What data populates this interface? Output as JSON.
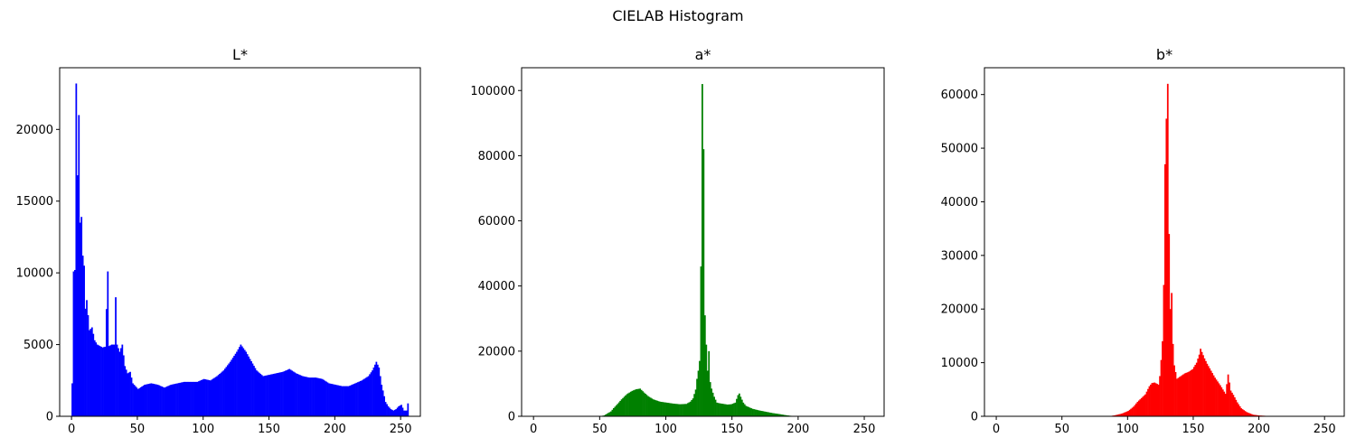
{
  "figure": {
    "suptitle": "CIELAB Histogram"
  },
  "chart_data": [
    {
      "type": "bar",
      "title": "L*",
      "xlabel": "",
      "ylabel": "",
      "color": "#0000ff",
      "xlim": [
        -9,
        265
      ],
      "ylim": [
        0,
        24300
      ],
      "xticks": [
        0,
        50,
        100,
        150,
        200,
        250
      ],
      "yticks": [
        0,
        5000,
        10000,
        15000,
        20000
      ],
      "grid": false,
      "x": "integer bins 0-255",
      "key_points": [
        [
          0,
          2300
        ],
        [
          1,
          10100
        ],
        [
          2,
          10200
        ],
        [
          3,
          23200
        ],
        [
          4,
          16800
        ],
        [
          5,
          21000
        ],
        [
          6,
          13500
        ],
        [
          7,
          13900
        ],
        [
          8,
          11200
        ],
        [
          9,
          10500
        ],
        [
          10,
          7500
        ],
        [
          11,
          8100
        ],
        [
          13,
          6000
        ],
        [
          15,
          6200
        ],
        [
          17,
          5300
        ],
        [
          19,
          5000
        ],
        [
          21,
          4900
        ],
        [
          23,
          4800
        ],
        [
          25,
          4850
        ],
        [
          27,
          10100
        ],
        [
          28,
          4900
        ],
        [
          30,
          5000
        ],
        [
          32,
          5000
        ],
        [
          33,
          8300
        ],
        [
          34,
          5000
        ],
        [
          36,
          4500
        ],
        [
          38,
          5000
        ],
        [
          40,
          3500
        ],
        [
          42,
          3000
        ],
        [
          44,
          3100
        ],
        [
          46,
          2300
        ],
        [
          48,
          2100
        ],
        [
          50,
          1900
        ],
        [
          55,
          2200
        ],
        [
          60,
          2300
        ],
        [
          65,
          2200
        ],
        [
          70,
          2000
        ],
        [
          75,
          2200
        ],
        [
          80,
          2300
        ],
        [
          85,
          2400
        ],
        [
          90,
          2400
        ],
        [
          95,
          2400
        ],
        [
          100,
          2600
        ],
        [
          105,
          2500
        ],
        [
          110,
          2800
        ],
        [
          115,
          3200
        ],
        [
          120,
          3800
        ],
        [
          125,
          4500
        ],
        [
          128,
          5000
        ],
        [
          132,
          4500
        ],
        [
          135,
          4000
        ],
        [
          140,
          3200
        ],
        [
          145,
          2800
        ],
        [
          150,
          2900
        ],
        [
          155,
          3000
        ],
        [
          160,
          3100
        ],
        [
          165,
          3300
        ],
        [
          170,
          3000
        ],
        [
          175,
          2800
        ],
        [
          180,
          2700
        ],
        [
          185,
          2700
        ],
        [
          190,
          2600
        ],
        [
          195,
          2300
        ],
        [
          200,
          2200
        ],
        [
          205,
          2100
        ],
        [
          210,
          2100
        ],
        [
          215,
          2300
        ],
        [
          220,
          2500
        ],
        [
          225,
          2800
        ],
        [
          228,
          3200
        ],
        [
          231,
          3800
        ],
        [
          233,
          3400
        ],
        [
          235,
          2200
        ],
        [
          238,
          1000
        ],
        [
          240,
          700
        ],
        [
          242,
          500
        ],
        [
          244,
          400
        ],
        [
          246,
          500
        ],
        [
          248,
          700
        ],
        [
          250,
          800
        ],
        [
          252,
          400
        ],
        [
          254,
          400
        ],
        [
          255,
          900
        ]
      ]
    },
    {
      "type": "bar",
      "title": "a*",
      "xlabel": "",
      "ylabel": "",
      "color": "#008000",
      "xlim": [
        -9,
        265
      ],
      "ylim": [
        0,
        107000
      ],
      "xticks": [
        0,
        50,
        100,
        150,
        200,
        250
      ],
      "yticks": [
        0,
        20000,
        40000,
        60000,
        80000,
        100000
      ],
      "grid": false,
      "x": "integer bins 0-255",
      "key_points": [
        [
          0,
          0
        ],
        [
          50,
          0
        ],
        [
          53,
          300
        ],
        [
          55,
          800
        ],
        [
          58,
          1500
        ],
        [
          60,
          2500
        ],
        [
          63,
          3800
        ],
        [
          66,
          5200
        ],
        [
          70,
          6800
        ],
        [
          74,
          7800
        ],
        [
          77,
          8300
        ],
        [
          80,
          8500
        ],
        [
          83,
          7300
        ],
        [
          86,
          6200
        ],
        [
          90,
          5200
        ],
        [
          95,
          4500
        ],
        [
          100,
          4200
        ],
        [
          105,
          3900
        ],
        [
          110,
          3700
        ],
        [
          115,
          3800
        ],
        [
          118,
          4500
        ],
        [
          120,
          5500
        ],
        [
          122,
          8200
        ],
        [
          123,
          11500
        ],
        [
          124,
          14000
        ],
        [
          125,
          17000
        ],
        [
          126,
          46000
        ],
        [
          127,
          102000
        ],
        [
          128,
          82000
        ],
        [
          129,
          31000
        ],
        [
          130,
          22000
        ],
        [
          131,
          14000
        ],
        [
          132,
          20000
        ],
        [
          133,
          10500
        ],
        [
          134,
          8500
        ],
        [
          136,
          6000
        ],
        [
          138,
          4200
        ],
        [
          140,
          4000
        ],
        [
          143,
          3800
        ],
        [
          146,
          3600
        ],
        [
          149,
          3700
        ],
        [
          152,
          4200
        ],
        [
          154,
          6500
        ],
        [
          155,
          7000
        ],
        [
          156,
          6000
        ],
        [
          158,
          4200
        ],
        [
          160,
          3200
        ],
        [
          165,
          2300
        ],
        [
          170,
          1800
        ],
        [
          175,
          1400
        ],
        [
          180,
          1000
        ],
        [
          185,
          700
        ],
        [
          190,
          350
        ],
        [
          195,
          100
        ],
        [
          200,
          0
        ],
        [
          255,
          0
        ]
      ]
    },
    {
      "type": "bar",
      "title": "b*",
      "xlabel": "",
      "ylabel": "",
      "color": "#ff0000",
      "xlim": [
        -9,
        265
      ],
      "ylim": [
        0,
        65000
      ],
      "xticks": [
        0,
        50,
        100,
        150,
        200,
        250
      ],
      "yticks": [
        0,
        10000,
        20000,
        30000,
        40000,
        50000,
        60000
      ],
      "grid": false,
      "x": "integer bins 0-255",
      "key_points": [
        [
          0,
          0
        ],
        [
          85,
          0
        ],
        [
          90,
          200
        ],
        [
          95,
          500
        ],
        [
          100,
          1000
        ],
        [
          104,
          1800
        ],
        [
          107,
          2700
        ],
        [
          110,
          3400
        ],
        [
          113,
          4100
        ],
        [
          116,
          5600
        ],
        [
          118,
          6200
        ],
        [
          120,
          6300
        ],
        [
          123,
          5900
        ],
        [
          124,
          7500
        ],
        [
          125,
          10500
        ],
        [
          126,
          14000
        ],
        [
          127,
          24500
        ],
        [
          128,
          47000
        ],
        [
          129,
          55500
        ],
        [
          130,
          62000
        ],
        [
          131,
          34000
        ],
        [
          132,
          20000
        ],
        [
          133,
          23000
        ],
        [
          134,
          13500
        ],
        [
          135,
          9500
        ],
        [
          137,
          7000
        ],
        [
          140,
          7500
        ],
        [
          143,
          8000
        ],
        [
          146,
          8300
        ],
        [
          149,
          8800
        ],
        [
          152,
          10000
        ],
        [
          154,
          11500
        ],
        [
          155,
          12600
        ],
        [
          156,
          12000
        ],
        [
          158,
          10800
        ],
        [
          160,
          9800
        ],
        [
          163,
          8500
        ],
        [
          166,
          7200
        ],
        [
          170,
          5800
        ],
        [
          174,
          4200
        ],
        [
          176,
          7800
        ],
        [
          178,
          4800
        ],
        [
          180,
          4000
        ],
        [
          183,
          2600
        ],
        [
          186,
          1500
        ],
        [
          190,
          800
        ],
        [
          195,
          300
        ],
        [
          200,
          150
        ],
        [
          205,
          80
        ],
        [
          210,
          30
        ],
        [
          220,
          0
        ],
        [
          255,
          0
        ]
      ]
    }
  ]
}
